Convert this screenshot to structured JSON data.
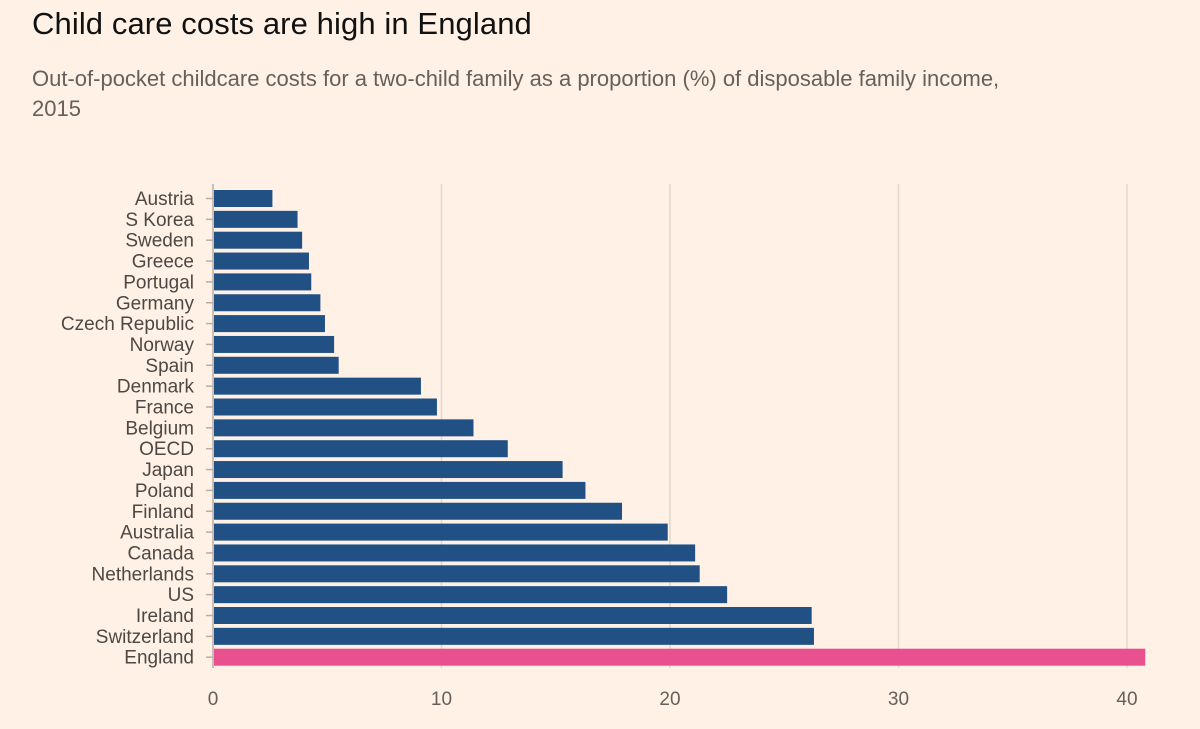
{
  "header": {
    "title": "Child care costs are high in England",
    "subtitle": "Out-of-pocket childcare costs for a two-child family as a proportion (%) of disposable family income, 2015"
  },
  "colors": {
    "bar": "#215085",
    "highlight": "#e8508f",
    "grid": "#e2d8cf",
    "axis": "#b8aea6"
  },
  "chart_data": {
    "type": "bar",
    "orientation": "horizontal",
    "title": "Child care costs are high in England",
    "subtitle": "Out-of-pocket childcare costs for a two-child family as a proportion (%) of disposable family income, 2015",
    "xlabel": "",
    "ylabel": "",
    "xlim": [
      0,
      41
    ],
    "xticks": [
      0,
      10,
      20,
      30,
      40
    ],
    "grid": true,
    "highlight_category": "England",
    "categories": [
      "Austria",
      "S Korea",
      "Sweden",
      "Greece",
      "Portugal",
      "Germany",
      "Czech Republic",
      "Norway",
      "Spain",
      "Denmark",
      "France",
      "Belgium",
      "OECD",
      "Japan",
      "Poland",
      "Finland",
      "Australia",
      "Canada",
      "Netherlands",
      "US",
      "Ireland",
      "Switzerland",
      "England"
    ],
    "values": [
      2.6,
      3.7,
      3.9,
      4.2,
      4.3,
      4.7,
      4.9,
      5.3,
      5.5,
      9.1,
      9.8,
      11.4,
      12.9,
      15.3,
      16.3,
      17.9,
      19.9,
      21.1,
      21.3,
      22.5,
      26.2,
      26.3,
      40.8
    ]
  }
}
